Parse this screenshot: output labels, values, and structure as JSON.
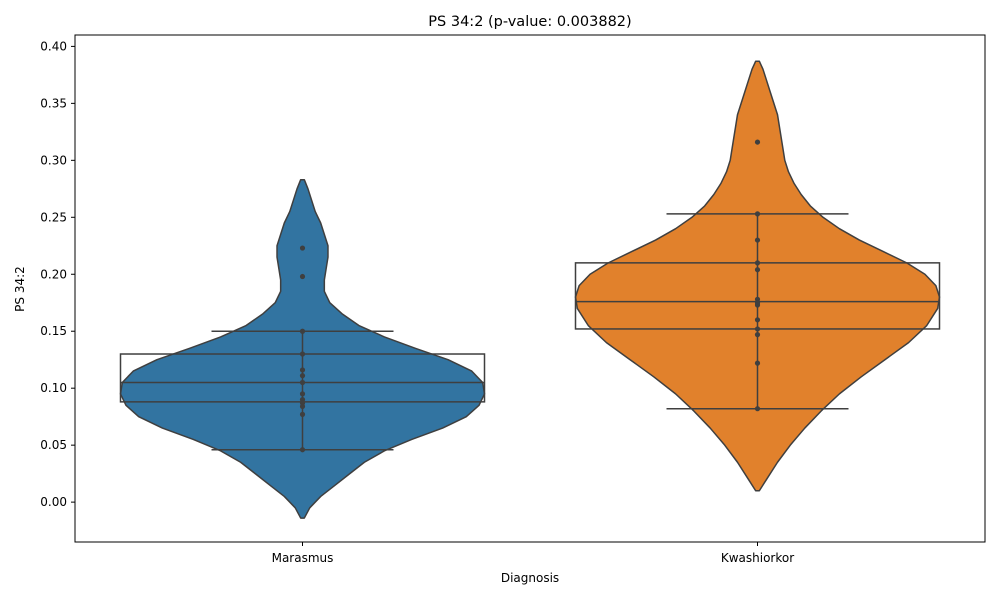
{
  "chart_data": {
    "type": "violin",
    "title": "PS 34:2 (p-value: 0.003882)",
    "xlabel": "Diagnosis",
    "ylabel": "PS 34:2",
    "ylim": [
      -0.035,
      0.41
    ],
    "yticks": [
      "0.00",
      "0.05",
      "0.10",
      "0.15",
      "0.20",
      "0.25",
      "0.30",
      "0.35",
      "0.40"
    ],
    "grid": false,
    "categories": [
      "Marasmus",
      "Kwashiorkor"
    ],
    "series": [
      {
        "category": "Marasmus",
        "color": "#3274a1",
        "violin_extent": [
          -0.014,
          0.283
        ],
        "whisker_range": [
          0.046,
          0.15
        ],
        "box": {
          "q1": 0.088,
          "median": 0.105,
          "q3": 0.13
        },
        "points": [
          0.223,
          0.198,
          0.15,
          0.13,
          0.116,
          0.111,
          0.105,
          0.095,
          0.09,
          0.087,
          0.084,
          0.077,
          0.046
        ],
        "density_profile": [
          [
            -0.014,
            0.01
          ],
          [
            -0.005,
            0.04
          ],
          [
            0.005,
            0.1
          ],
          [
            0.015,
            0.18
          ],
          [
            0.025,
            0.26
          ],
          [
            0.035,
            0.34
          ],
          [
            0.045,
            0.45
          ],
          [
            0.055,
            0.6
          ],
          [
            0.065,
            0.77
          ],
          [
            0.075,
            0.9
          ],
          [
            0.085,
            0.97
          ],
          [
            0.095,
            1.0
          ],
          [
            0.105,
            0.99
          ],
          [
            0.115,
            0.93
          ],
          [
            0.125,
            0.8
          ],
          [
            0.135,
            0.62
          ],
          [
            0.145,
            0.45
          ],
          [
            0.155,
            0.31
          ],
          [
            0.165,
            0.22
          ],
          [
            0.175,
            0.15
          ],
          [
            0.185,
            0.12
          ],
          [
            0.195,
            0.12
          ],
          [
            0.205,
            0.13
          ],
          [
            0.215,
            0.14
          ],
          [
            0.225,
            0.14
          ],
          [
            0.235,
            0.12
          ],
          [
            0.245,
            0.1
          ],
          [
            0.255,
            0.07
          ],
          [
            0.265,
            0.05
          ],
          [
            0.275,
            0.03
          ],
          [
            0.283,
            0.01
          ]
        ]
      },
      {
        "category": "Kwashiorkor",
        "color": "#e1812c",
        "violin_extent": [
          0.01,
          0.387
        ],
        "whisker_range": [
          0.082,
          0.253
        ],
        "box": {
          "q1": 0.152,
          "median": 0.176,
          "q3": 0.21
        },
        "points": [
          0.316,
          0.253,
          0.23,
          0.21,
          0.204,
          0.178,
          0.175,
          0.173,
          0.16,
          0.152,
          0.147,
          0.122,
          0.082
        ],
        "density_profile": [
          [
            0.01,
            0.01
          ],
          [
            0.02,
            0.05
          ],
          [
            0.035,
            0.11
          ],
          [
            0.05,
            0.18
          ],
          [
            0.065,
            0.26
          ],
          [
            0.08,
            0.35
          ],
          [
            0.095,
            0.45
          ],
          [
            0.11,
            0.57
          ],
          [
            0.125,
            0.7
          ],
          [
            0.14,
            0.83
          ],
          [
            0.155,
            0.93
          ],
          [
            0.17,
            0.99
          ],
          [
            0.18,
            1.0
          ],
          [
            0.19,
            0.98
          ],
          [
            0.2,
            0.92
          ],
          [
            0.21,
            0.82
          ],
          [
            0.22,
            0.69
          ],
          [
            0.23,
            0.56
          ],
          [
            0.24,
            0.45
          ],
          [
            0.25,
            0.36
          ],
          [
            0.26,
            0.29
          ],
          [
            0.27,
            0.24
          ],
          [
            0.28,
            0.2
          ],
          [
            0.29,
            0.17
          ],
          [
            0.3,
            0.15
          ],
          [
            0.31,
            0.14
          ],
          [
            0.32,
            0.13
          ],
          [
            0.33,
            0.12
          ],
          [
            0.34,
            0.11
          ],
          [
            0.35,
            0.09
          ],
          [
            0.36,
            0.07
          ],
          [
            0.37,
            0.05
          ],
          [
            0.38,
            0.03
          ],
          [
            0.387,
            0.01
          ]
        ]
      }
    ]
  }
}
